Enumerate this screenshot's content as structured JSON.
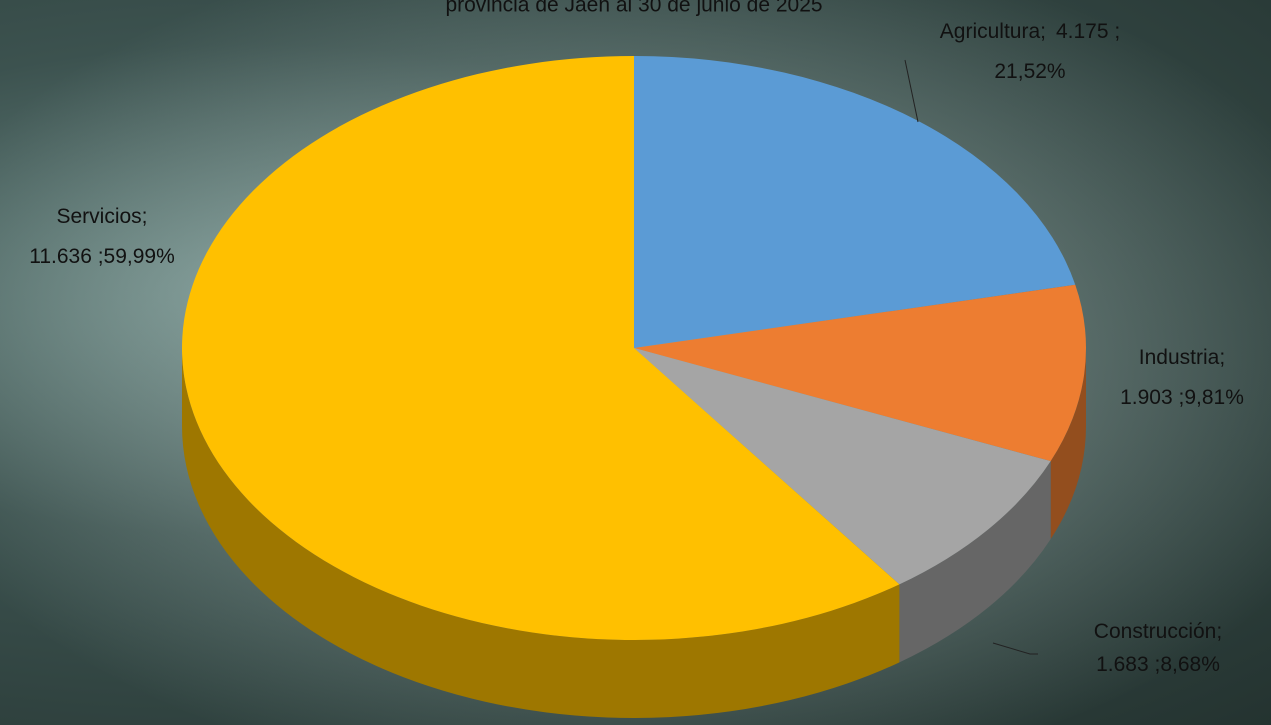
{
  "chart_data": {
    "type": "pie3d",
    "title": "provincia de Jaén al 30 de junio de 2025",
    "categories": [
      "Agricultura;",
      "Industria;",
      "Construcción;",
      "Servicios;"
    ],
    "values": [
      4175,
      1903,
      1683,
      11636
    ],
    "value_labels": [
      "4.175 ;",
      "1.903 ;",
      "1.683 ;",
      "11.636 ;"
    ],
    "percent_labels": [
      "21,52%",
      "9,81%",
      "8,68%",
      "59,99%"
    ],
    "colors": [
      "#5b9bd5",
      "#ed7d31",
      "#a5a5a5",
      "#ffc000"
    ]
  }
}
